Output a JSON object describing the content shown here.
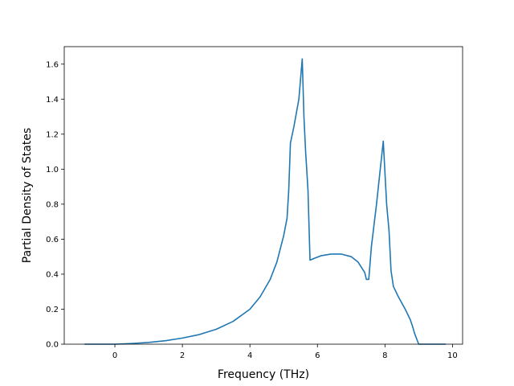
{
  "chart_data": {
    "type": "line",
    "title": "",
    "xlabel": "Frequency (THz)",
    "ylabel": "Partial Density of States",
    "xlim": [
      -1.5,
      10.3
    ],
    "ylim": [
      0.0,
      1.7
    ],
    "xticks": [
      0,
      2,
      4,
      6,
      8,
      10
    ],
    "yticks": [
      0.0,
      0.2,
      0.4,
      0.6,
      0.8,
      1.0,
      1.2,
      1.4,
      1.6
    ],
    "grid": false,
    "line_color": "#1f77b4",
    "series": [
      {
        "x": [
          -0.9,
          -0.5,
          0.0,
          0.5,
          1.0,
          1.5,
          2.0,
          2.5,
          3.0,
          3.5,
          4.0,
          4.3,
          4.6,
          4.8,
          5.0,
          5.1,
          5.15,
          5.2,
          5.3,
          5.45,
          5.55,
          5.6,
          5.65,
          5.72,
          5.78,
          5.9,
          6.1,
          6.4,
          6.7,
          7.0,
          7.2,
          7.4,
          7.45,
          7.52,
          7.6,
          7.75,
          7.95,
          8.05,
          8.12,
          8.18,
          8.25,
          8.4,
          8.6,
          8.75,
          8.82,
          8.88,
          9.0,
          9.5,
          9.8
        ],
        "y": [
          0.0,
          0.0,
          0.0,
          0.004,
          0.01,
          0.02,
          0.035,
          0.055,
          0.085,
          0.13,
          0.2,
          0.27,
          0.37,
          0.47,
          0.62,
          0.72,
          0.88,
          1.15,
          1.24,
          1.4,
          1.63,
          1.3,
          1.1,
          0.88,
          0.48,
          0.49,
          0.505,
          0.515,
          0.515,
          0.5,
          0.47,
          0.41,
          0.37,
          0.37,
          0.56,
          0.8,
          1.16,
          0.8,
          0.65,
          0.42,
          0.33,
          0.27,
          0.2,
          0.14,
          0.1,
          0.06,
          0.0,
          0.0,
          0.0
        ]
      }
    ]
  }
}
